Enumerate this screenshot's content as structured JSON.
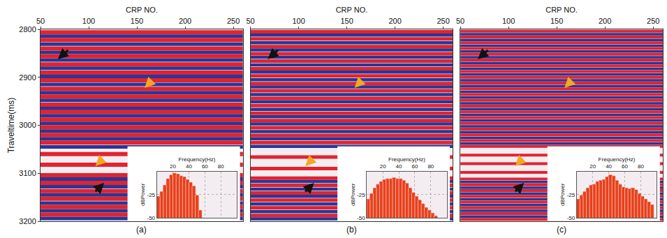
{
  "chart_data": [
    {
      "type": "seismic_section",
      "label": "(a)",
      "x_title": "CRP NO.",
      "y_title": "Traveltime(ms)",
      "xlim": [
        50,
        260
      ],
      "xticks": [
        50,
        100,
        150,
        200,
        250
      ],
      "ylim": [
        2800,
        3200
      ],
      "yticks": [
        2800,
        2900,
        3000,
        3100,
        3200
      ],
      "grid": false,
      "peaks": {
        "color": "#e2232f",
        "times": [
          2806,
          2822,
          2840,
          2856,
          2873,
          2890,
          2906,
          2924,
          2940,
          2957,
          2972,
          2988,
          3004,
          3020,
          3036,
          3060,
          3082,
          3104,
          3120,
          3137,
          3153,
          3170,
          3186
        ]
      },
      "troughs": {
        "color": "#23389c",
        "times": [
          2814,
          2831,
          2848,
          2864,
          2881,
          2898,
          2915,
          2932,
          2948,
          2965,
          2980,
          2996,
          3012,
          3028,
          3045,
          3112,
          3128,
          3145,
          3162,
          3178,
          3194
        ]
      },
      "inset": {
        "type": "bar",
        "x_title": "Frequency(Hz)",
        "y_title": "dBPower",
        "color": "#e8401c",
        "xlim": [
          0,
          100
        ],
        "xticks": [
          20,
          40,
          60,
          80
        ],
        "ylim": [
          -50,
          0
        ],
        "yticks": [
          -25,
          -50
        ],
        "grid": true,
        "bins": [
          0,
          4,
          8,
          12,
          16,
          20,
          24,
          28,
          32,
          36,
          40,
          44,
          48,
          52,
          56
        ],
        "values": [
          -27,
          -22,
          -15,
          -8,
          -4,
          -2,
          -3,
          -5,
          -6,
          -9,
          -12,
          -16,
          -26,
          -42
        ]
      }
    },
    {
      "type": "seismic_section",
      "label": "(b)",
      "x_title": "CRP NO.",
      "tick_labels": "x",
      "xlim": [
        50,
        260
      ],
      "xticks": [
        50,
        100,
        150,
        200,
        250
      ],
      "ylim": [
        2800,
        3200
      ],
      "yticks": [
        2800,
        2900,
        3000,
        3100,
        3200
      ],
      "grid": false,
      "peaks": {
        "color": "#e2232f",
        "times": [
          2805,
          2820,
          2836,
          2851,
          2866,
          2882,
          2897,
          2913,
          2928,
          2944,
          2959,
          2975,
          2990,
          3005,
          3021,
          3036,
          3066,
          3090,
          3110,
          3125,
          3141,
          3156,
          3172,
          3188
        ]
      },
      "troughs": {
        "color": "#23389c",
        "times": [
          2812,
          2828,
          2843,
          2858,
          2874,
          2889,
          2905,
          2920,
          2936,
          2951,
          2967,
          2982,
          2997,
          3013,
          3028,
          3044,
          3117,
          3133,
          3148,
          3164,
          3180,
          3195
        ]
      },
      "inset": {
        "type": "bar",
        "x_title": "Frequency(Hz)",
        "y_title": "dBPower",
        "color": "#e8401c",
        "xlim": [
          0,
          100
        ],
        "xticks": [
          20,
          40,
          60,
          80
        ],
        "ylim": [
          -50,
          0
        ],
        "yticks": [
          -25,
          -50
        ],
        "grid": true,
        "bins": [
          0,
          4,
          8,
          12,
          16,
          20,
          24,
          28,
          32,
          36,
          40,
          44,
          48,
          52,
          56,
          60,
          64,
          68,
          72,
          76,
          80,
          84,
          88
        ],
        "values": [
          -30,
          -24,
          -18,
          -14,
          -11,
          -9,
          -8,
          -8,
          -7,
          -8,
          -8,
          -10,
          -13,
          -18,
          -23,
          -27,
          -31,
          -35,
          -39,
          -42,
          -45,
          -48
        ]
      }
    },
    {
      "type": "seismic_section",
      "label": "(c)",
      "x_title": "CRP NO.",
      "tick_labels": "x",
      "xlim": [
        50,
        260
      ],
      "xticks": [
        50,
        100,
        150,
        200,
        250
      ],
      "ylim": [
        2800,
        3200
      ],
      "yticks": [
        2800,
        2900,
        3000,
        3100,
        3200
      ],
      "grid": false,
      "peaks": {
        "color": "#e2232f",
        "times": [
          2804,
          2816,
          2828,
          2840,
          2852,
          2864,
          2876,
          2888,
          2900,
          2912,
          2924,
          2936,
          2948,
          2960,
          2972,
          2984,
          2996,
          3008,
          3020,
          3032,
          3044,
          3062,
          3080,
          3098,
          3112,
          3124,
          3136,
          3148,
          3160,
          3172,
          3184,
          3196
        ]
      },
      "troughs": {
        "color": "#23389c",
        "times": [
          2810,
          2822,
          2834,
          2846,
          2858,
          2870,
          2882,
          2894,
          2906,
          2918,
          2930,
          2942,
          2954,
          2966,
          2978,
          2990,
          3002,
          3014,
          3026,
          3038,
          3118,
          3130,
          3142,
          3154,
          3166,
          3178,
          3190
        ]
      },
      "inset": {
        "type": "bar",
        "x_title": "Frequency(Hz)",
        "y_title": "dBPower",
        "color": "#e8401c",
        "xlim": [
          0,
          100
        ],
        "xticks": [
          20,
          40,
          60,
          80
        ],
        "ylim": [
          -50,
          0
        ],
        "yticks": [
          -25,
          -50
        ],
        "grid": true,
        "bins": [
          0,
          4,
          8,
          12,
          16,
          20,
          24,
          28,
          32,
          36,
          40,
          44,
          48,
          52,
          56,
          60,
          64,
          68,
          72,
          76,
          80,
          84,
          88,
          92,
          96
        ],
        "values": [
          -30,
          -26,
          -22,
          -18,
          -15,
          -14,
          -11,
          -10,
          -9,
          -6,
          -4,
          -5,
          -10,
          -14,
          -17,
          -18,
          -19,
          -18,
          -20,
          -24,
          -27,
          -30,
          -33,
          -36
        ]
      }
    }
  ]
}
